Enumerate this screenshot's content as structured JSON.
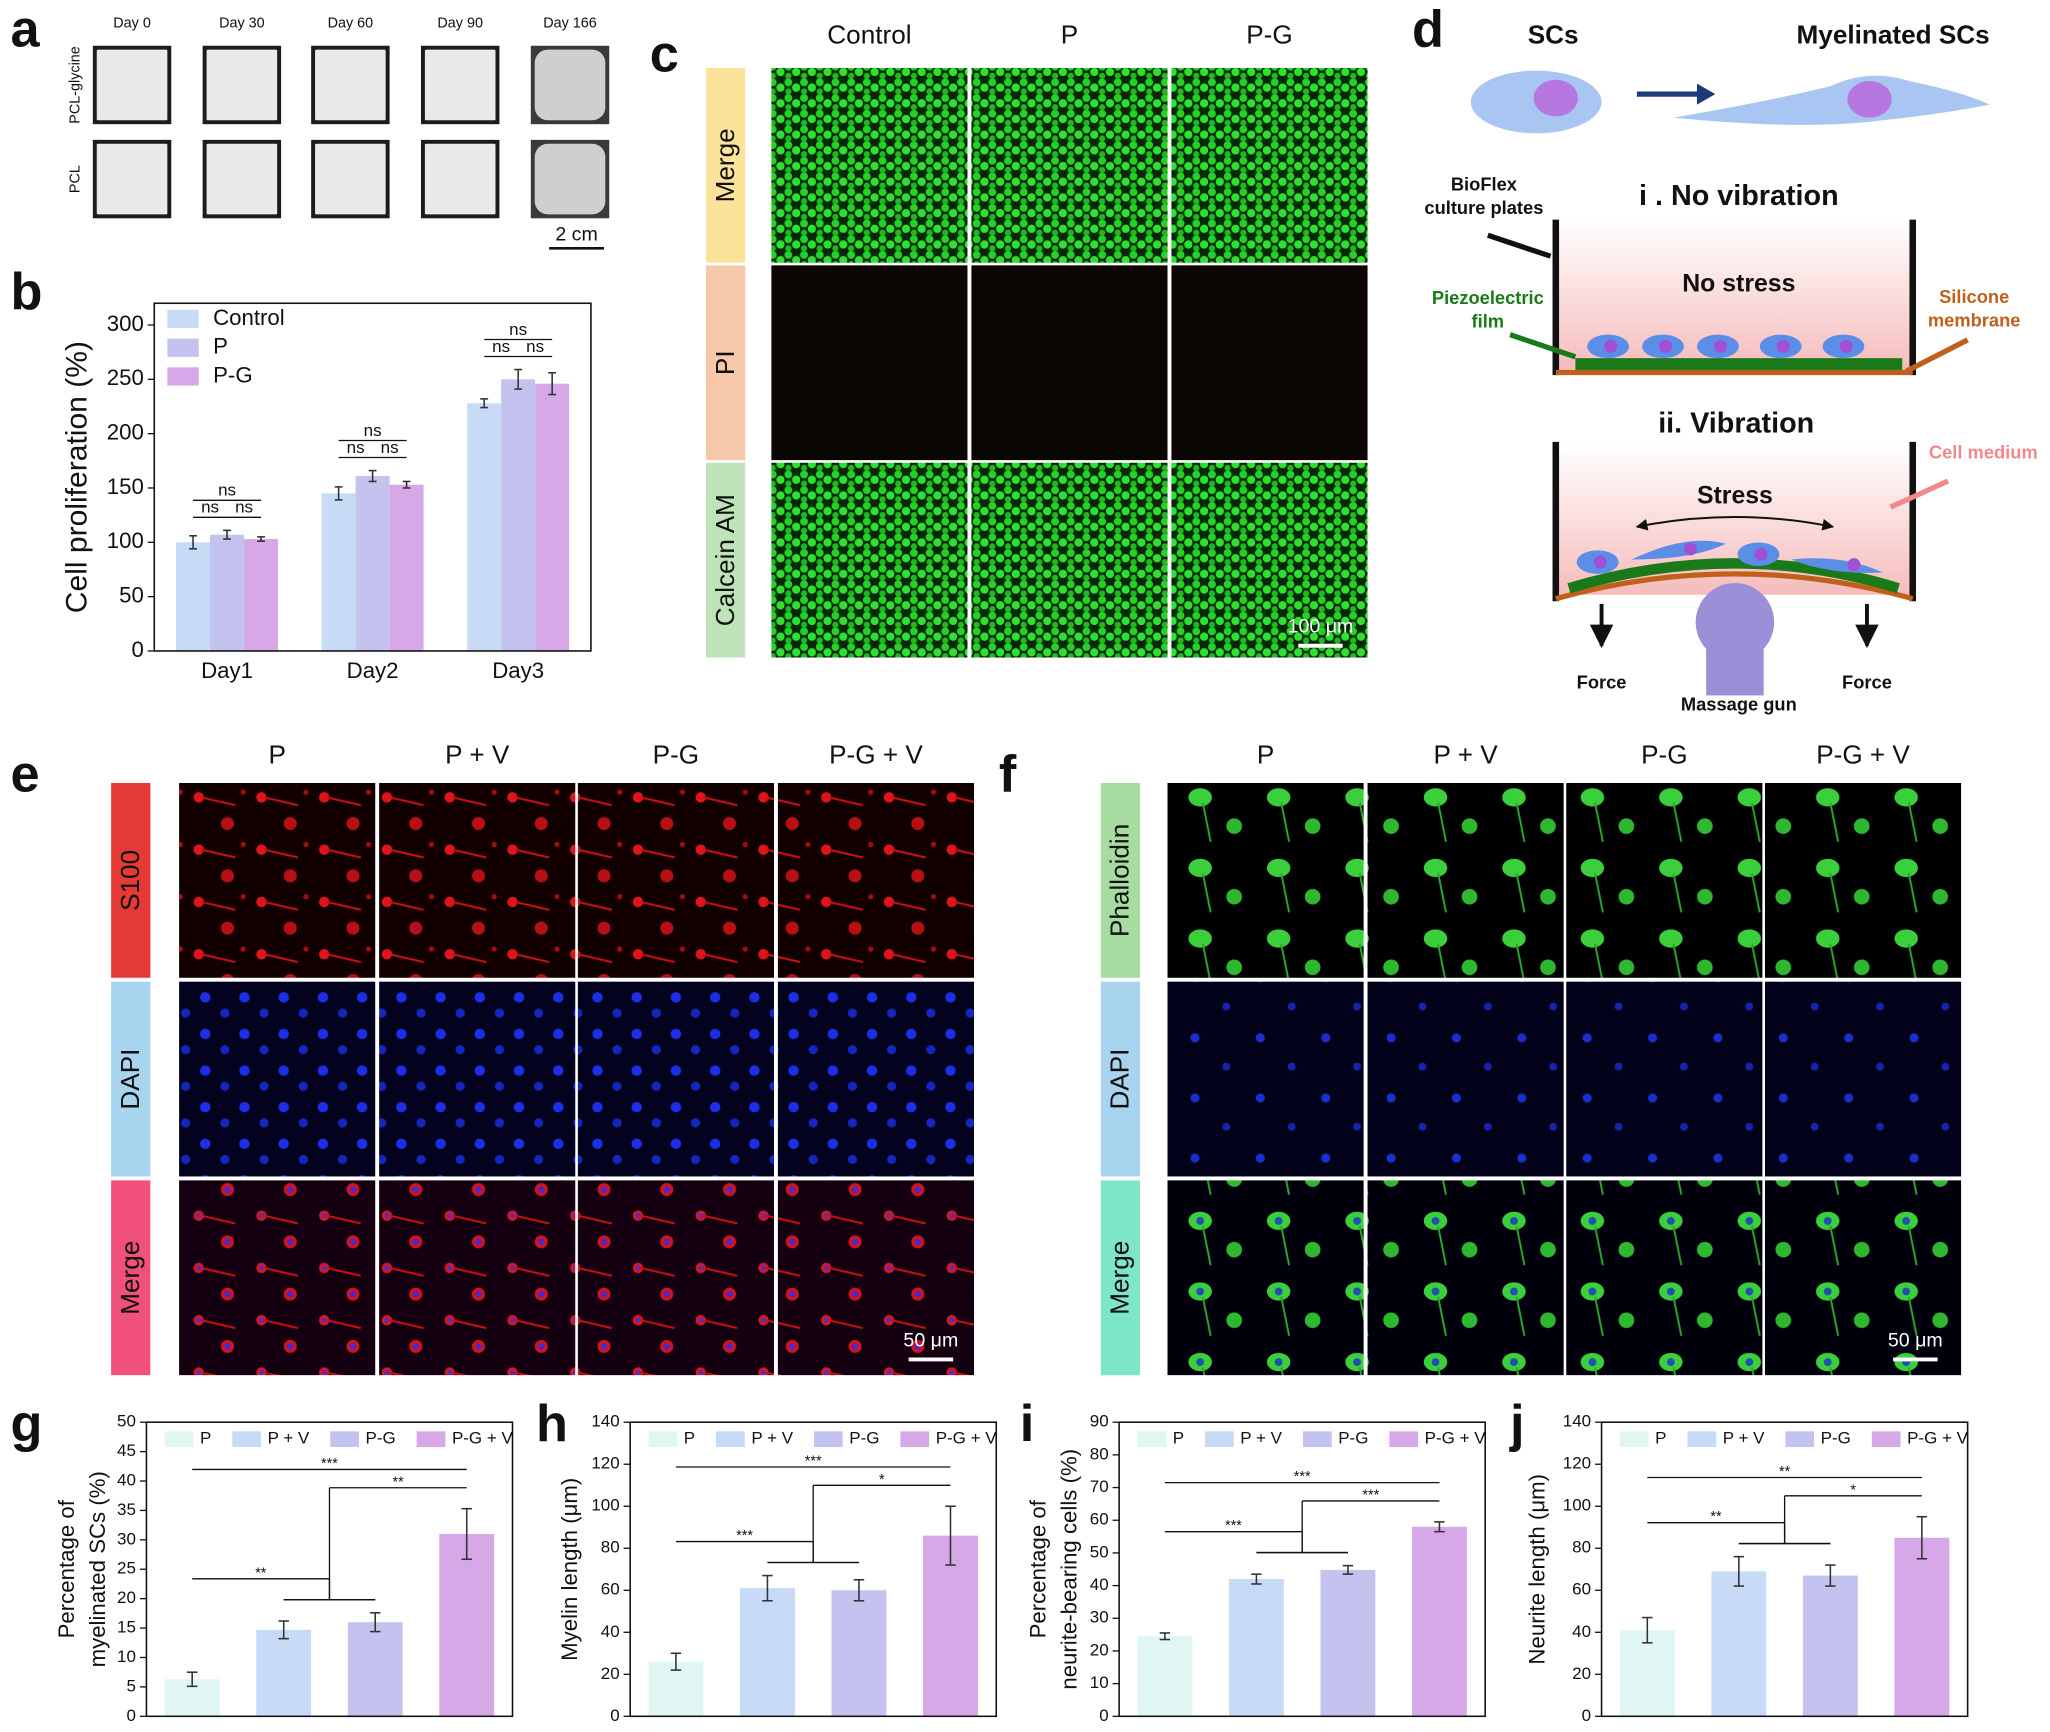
{
  "panel_a": {
    "letter": "a",
    "columns": [
      "Day 0",
      "Day 30",
      "Day 60",
      "Day 90",
      "Day 166"
    ],
    "rows": [
      "PCL-glycine",
      "PCL"
    ],
    "scale_bar": "2 cm"
  },
  "panel_c": {
    "letter": "c",
    "columns": [
      "Control",
      "P",
      "P-G"
    ],
    "rows": [
      "Merge",
      "PI",
      "Calcein AM"
    ],
    "scale_bar": "100 μm"
  },
  "panel_d": {
    "letter": "d",
    "labels": {
      "before": "SCs",
      "after": "Myelinated SCs",
      "plate": [
        "BioFlex",
        "culture plates"
      ],
      "case1": "i . No vibration",
      "no_stress": "No stress",
      "film": [
        "Piezoelectric",
        "film"
      ],
      "membrane": [
        "Silicone",
        "membrane"
      ],
      "case2": "ii. Vibration",
      "medium": "Cell medium",
      "stress": "Stress",
      "force": "Force",
      "gun": "Massage gun"
    }
  },
  "panel_e": {
    "letter": "e",
    "columns": [
      "P",
      "P + V",
      "P-G",
      "P-G + V"
    ],
    "rows": [
      "S100",
      "DAPI",
      "Merge"
    ],
    "scale_bar": "50 μm"
  },
  "panel_f": {
    "letter": "f",
    "columns": [
      "P",
      "P + V",
      "P-G",
      "P-G + V"
    ],
    "rows": [
      "Phalloidin",
      "DAPI",
      "Merge"
    ],
    "scale_bar": "50 μm"
  },
  "chart_data": [
    {
      "type": "bar",
      "panel": "b",
      "y_label": "Cell proliferation (%)",
      "categories": [
        "Day1",
        "Day2",
        "Day3"
      ],
      "series": [
        {
          "name": "Control",
          "color": "#c8dbf6",
          "values": [
            100,
            145,
            228
          ],
          "errors": [
            6,
            6,
            4
          ]
        },
        {
          "name": "P",
          "color": "#c4c2ee",
          "values": [
            107,
            161,
            250
          ],
          "errors": [
            4,
            5,
            9
          ]
        },
        {
          "name": "P-G",
          "color": "#d6a8e8",
          "values": [
            103,
            153,
            246
          ],
          "errors": [
            2,
            3,
            10
          ]
        }
      ],
      "ylim": [
        0,
        320
      ],
      "yticks": [
        0,
        50,
        100,
        150,
        200,
        250,
        300
      ],
      "legend": "upper left",
      "significance": [
        {
          "category": "Day1",
          "from": [
            "Control"
          ],
          "to": [
            "P"
          ],
          "label": "ns"
        },
        {
          "category": "Day1",
          "from": [
            "P"
          ],
          "to": [
            "P-G"
          ],
          "label": "ns"
        },
        {
          "category": "Day1",
          "from": [
            "Control"
          ],
          "to": [
            "P-G"
          ],
          "label": "ns"
        },
        {
          "category": "Day2",
          "from": [
            "Control"
          ],
          "to": [
            "P"
          ],
          "label": "ns"
        },
        {
          "category": "Day2",
          "from": [
            "P"
          ],
          "to": [
            "P-G"
          ],
          "label": "ns"
        },
        {
          "category": "Day2",
          "from": [
            "Control"
          ],
          "to": [
            "P-G"
          ],
          "label": "ns"
        },
        {
          "category": "Day3",
          "from": [
            "Control"
          ],
          "to": [
            "P"
          ],
          "label": "ns"
        },
        {
          "category": "Day3",
          "from": [
            "P"
          ],
          "to": [
            "P-G"
          ],
          "label": "ns"
        },
        {
          "category": "Day3",
          "from": [
            "Control"
          ],
          "to": [
            "P-G"
          ],
          "label": "ns"
        }
      ]
    },
    {
      "type": "bar",
      "panel": "g",
      "y_label": [
        "Percentage of",
        "myelinated SCs (%)"
      ],
      "categories": [
        "P",
        "P + V",
        "P-G",
        "P-G + V"
      ],
      "colors": [
        "#dff6f3",
        "#c8dbf6",
        "#c4c2ee",
        "#d6a8e8"
      ],
      "values": [
        6.3,
        14.7,
        16.0,
        31.0
      ],
      "errors": [
        1.2,
        1.5,
        1.6,
        4.3
      ],
      "ylim": [
        0,
        50
      ],
      "yticks": [
        0,
        5,
        10,
        15,
        20,
        25,
        30,
        35,
        40,
        45,
        50
      ],
      "legend": "top",
      "significance": [
        {
          "from": [
            "P"
          ],
          "to": [
            "P + V",
            "P-G"
          ],
          "label": "**"
        },
        {
          "from": [
            "P + V",
            "P-G"
          ],
          "to": [
            "P-G + V"
          ],
          "label": "**"
        },
        {
          "from": [
            "P"
          ],
          "to": [
            "P-G + V"
          ],
          "label": "***"
        }
      ]
    },
    {
      "type": "bar",
      "panel": "h",
      "y_label": "Myelin length (μm)",
      "categories": [
        "P",
        "P + V",
        "P-G",
        "P-G + V"
      ],
      "colors": [
        "#dff6f3",
        "#c8dbf6",
        "#c4c2ee",
        "#d6a8e8"
      ],
      "values": [
        26,
        61,
        60,
        86
      ],
      "errors": [
        4,
        6,
        5,
        14
      ],
      "ylim": [
        0,
        140
      ],
      "yticks": [
        0,
        20,
        40,
        60,
        80,
        100,
        120,
        140
      ],
      "legend": "top",
      "significance": [
        {
          "from": [
            "P"
          ],
          "to": [
            "P + V",
            "P-G"
          ],
          "label": "***"
        },
        {
          "from": [
            "P + V",
            "P-G"
          ],
          "to": [
            "P-G + V"
          ],
          "label": "*"
        },
        {
          "from": [
            "P"
          ],
          "to": [
            "P-G + V"
          ],
          "label": "***"
        }
      ]
    },
    {
      "type": "bar",
      "panel": "i",
      "y_label": [
        "Percentage of",
        "neurite-bearing cells (%)"
      ],
      "categories": [
        "P",
        "P + V",
        "P-G",
        "P-G + V"
      ],
      "colors": [
        "#dff6f3",
        "#c8dbf6",
        "#c4c2ee",
        "#d6a8e8"
      ],
      "values": [
        24.5,
        42,
        44.8,
        58
      ],
      "errors": [
        1,
        1.5,
        1.3,
        1.5
      ],
      "ylim": [
        0,
        90
      ],
      "yticks": [
        0,
        10,
        20,
        30,
        40,
        50,
        60,
        70,
        80,
        90
      ],
      "legend": "top",
      "significance": [
        {
          "from": [
            "P"
          ],
          "to": [
            "P + V",
            "P-G"
          ],
          "label": "***"
        },
        {
          "from": [
            "P + V",
            "P-G"
          ],
          "to": [
            "P-G + V"
          ],
          "label": "***"
        },
        {
          "from": [
            "P"
          ],
          "to": [
            "P-G + V"
          ],
          "label": "***"
        }
      ]
    },
    {
      "type": "bar",
      "panel": "j",
      "y_label": "Neurite length (μm)",
      "categories": [
        "P",
        "P + V",
        "P-G",
        "P-G + V"
      ],
      "colors": [
        "#dff6f3",
        "#c8dbf6",
        "#c4c2ee",
        "#d6a8e8"
      ],
      "values": [
        41,
        69,
        67,
        85
      ],
      "errors": [
        6,
        7,
        5,
        10
      ],
      "ylim": [
        0,
        140
      ],
      "yticks": [
        0,
        20,
        40,
        60,
        80,
        100,
        120,
        140
      ],
      "legend": "top",
      "significance": [
        {
          "from": [
            "P"
          ],
          "to": [
            "P + V",
            "P-G"
          ],
          "label": "**"
        },
        {
          "from": [
            "P + V",
            "P-G"
          ],
          "to": [
            "P-G + V"
          ],
          "label": "*"
        },
        {
          "from": [
            "P"
          ],
          "to": [
            "P-G + V"
          ],
          "label": "**"
        }
      ]
    }
  ]
}
